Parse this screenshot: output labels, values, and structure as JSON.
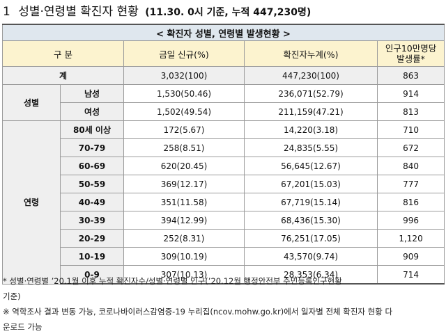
{
  "heading": {
    "number": "1",
    "title": "성별·연령별 확진자 현황",
    "subtitle": "(11.30. 0시 기준, 누적 447,230명)"
  },
  "table": {
    "caption": "< 확진자 성별, 연령별 발생현황 >",
    "headers": {
      "category": "구 분",
      "new_today": "금일 신규(%)",
      "cumulative": "확진자누계(%)",
      "incidence_line1": "인구10만명당",
      "incidence_line2": "발생률*"
    },
    "total": {
      "label": "계",
      "new": "3,032(100)",
      "cum": "447,230(100)",
      "rate": "863"
    },
    "sex": {
      "group_label": "성별",
      "rows": [
        {
          "label": "남성",
          "new": "1,530(50.46)",
          "cum": "236,071(52.79)",
          "rate": "914"
        },
        {
          "label": "여성",
          "new": "1,502(49.54)",
          "cum": "211,159(47.21)",
          "rate": "813"
        }
      ]
    },
    "age": {
      "group_label": "연령",
      "rows": [
        {
          "label": "80세 이상",
          "new": "172(5.67)",
          "cum": "14,220(3.18)",
          "rate": "710"
        },
        {
          "label": "70-79",
          "new": "258(8.51)",
          "cum": "24,835(5.55)",
          "rate": "672"
        },
        {
          "label": "60-69",
          "new": "620(20.45)",
          "cum": "56,645(12.67)",
          "rate": "840"
        },
        {
          "label": "50-59",
          "new": "369(12.17)",
          "cum": "67,201(15.03)",
          "rate": "777"
        },
        {
          "label": "40-49",
          "new": "351(11.58)",
          "cum": "67,719(15.14)",
          "rate": "816"
        },
        {
          "label": "30-39",
          "new": "394(12.99)",
          "cum": "68,436(15.30)",
          "rate": "996"
        },
        {
          "label": "20-29",
          "new": "252(8.31)",
          "cum": "76,251(17.05)",
          "rate": "1,120"
        },
        {
          "label": "10-19",
          "new": "309(10.19)",
          "cum": "43,570(9.74)",
          "rate": "909"
        },
        {
          "label": "0-9",
          "new": "307(10.13)",
          "cum": "28,353(6.34)",
          "rate": "714"
        }
      ]
    }
  },
  "notes": {
    "line1": "* 성별·연령별 ’20.1월 이후 누적 확진자수/성별·연령별 인구(’20.12월 행정안전부 주민등록인구현황",
    "line2": "기준)",
    "line3": "※ 역학조사 결과 변동 가능, 코로나바이러스감염증-19 누리집(ncov.mohw.go.kr)에서 일자별 전체 확진자 현황 다",
    "line4": "운로드 가능"
  }
}
